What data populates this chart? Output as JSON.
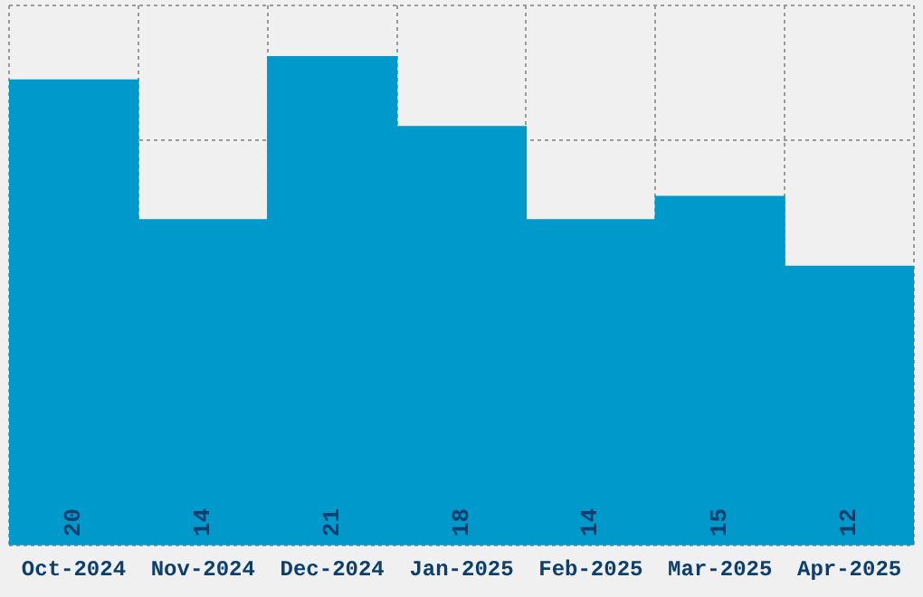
{
  "chart_data": {
    "type": "bar",
    "categories": [
      "Oct-2024",
      "Nov-2024",
      "Dec-2024",
      "Jan-2025",
      "Feb-2025",
      "Mar-2025",
      "Apr-2025"
    ],
    "values": [
      20,
      14,
      21,
      18,
      14,
      15,
      12
    ],
    "color": "#0099cc",
    "ylim": [
      0,
      23.2
    ],
    "grid": true,
    "data_labels": true,
    "tick_labels": "x"
  }
}
